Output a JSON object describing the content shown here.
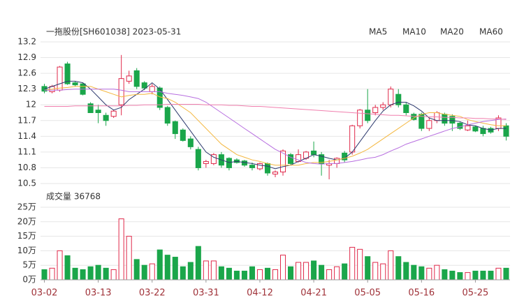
{
  "chart_data": [
    {
      "type": "candlestick",
      "title": "一拖股份[SH601038] 2023-05-31",
      "up_color": "#e0294a",
      "down_color": "#1aa64a",
      "open": [
        12.35,
        12.25,
        12.28,
        12.78,
        12.42,
        12.4,
        12.02,
        11.9,
        11.8,
        11.78,
        12.0,
        12.45,
        12.65,
        12.42,
        12.25,
        12.32,
        11.95,
        11.68,
        11.52,
        11.35,
        11.15,
        10.88,
        10.88,
        11.05,
        10.98,
        10.95,
        10.93,
        10.85,
        10.78,
        10.88,
        10.68,
        10.72,
        11.05,
        10.92,
        10.98,
        11.12,
        11.05,
        10.85,
        10.88,
        11.08,
        11.1,
        11.6,
        11.9,
        11.85,
        11.95,
        12.0,
        12.2,
        12.0,
        11.82,
        11.82,
        11.55,
        11.7,
        11.82,
        11.78,
        11.65,
        11.52,
        11.58,
        11.55,
        11.55,
        11.55,
        11.6
      ],
      "high": [
        12.4,
        12.38,
        12.74,
        12.82,
        12.45,
        12.42,
        12.05,
        12.0,
        11.85,
        11.9,
        12.95,
        12.65,
        12.7,
        12.45,
        12.4,
        12.35,
        11.98,
        11.7,
        11.55,
        11.4,
        11.2,
        10.95,
        11.08,
        11.1,
        11.0,
        10.98,
        10.95,
        10.9,
        10.9,
        10.9,
        10.75,
        11.15,
        11.08,
        11.15,
        11.12,
        11.3,
        11.1,
        10.95,
        11.0,
        11.12,
        11.62,
        11.92,
        12.3,
        12.0,
        12.05,
        12.35,
        12.3,
        12.05,
        11.85,
        11.85,
        11.75,
        11.88,
        11.85,
        11.82,
        11.68,
        11.7,
        11.6,
        11.6,
        11.58,
        11.8,
        11.65
      ],
      "low": [
        12.22,
        12.22,
        12.25,
        12.38,
        12.35,
        12.18,
        11.85,
        11.65,
        11.6,
        11.75,
        11.8,
        12.4,
        12.3,
        12.28,
        12.2,
        11.9,
        11.6,
        11.35,
        11.3,
        11.15,
        10.75,
        10.8,
        10.85,
        10.8,
        10.75,
        10.88,
        10.82,
        10.75,
        10.75,
        10.65,
        10.62,
        10.65,
        10.85,
        10.9,
        10.95,
        11.0,
        10.65,
        10.58,
        10.8,
        10.9,
        11.05,
        11.55,
        11.65,
        11.8,
        11.9,
        11.95,
        11.95,
        11.8,
        11.7,
        11.5,
        11.5,
        11.65,
        11.6,
        11.5,
        11.52,
        11.5,
        11.48,
        11.4,
        11.45,
        11.5,
        11.32
      ],
      "close": [
        12.26,
        12.35,
        12.72,
        12.4,
        12.38,
        12.2,
        11.85,
        11.85,
        11.7,
        11.88,
        12.5,
        12.55,
        12.35,
        12.32,
        12.35,
        11.95,
        11.65,
        11.45,
        11.32,
        11.2,
        10.8,
        10.92,
        11.05,
        10.85,
        10.8,
        10.9,
        10.85,
        10.8,
        10.88,
        10.7,
        10.72,
        11.12,
        10.88,
        11.05,
        11.1,
        11.05,
        10.88,
        10.88,
        10.98,
        10.95,
        11.6,
        11.9,
        11.7,
        11.95,
        12.0,
        12.3,
        12.0,
        11.85,
        11.72,
        11.55,
        11.7,
        11.85,
        11.65,
        11.65,
        11.55,
        11.6,
        11.5,
        11.45,
        11.48,
        11.75,
        11.4
      ],
      "series": [
        {
          "name": "MA5",
          "color": "#2d3a6e",
          "values": [
            12.3,
            12.35,
            12.4,
            12.45,
            12.45,
            12.42,
            12.3,
            12.15,
            12.0,
            11.9,
            11.95,
            12.1,
            12.2,
            12.3,
            12.42,
            12.3,
            12.1,
            11.9,
            11.7,
            11.5,
            11.3,
            11.1,
            11.0,
            10.95,
            10.9,
            10.92,
            10.9,
            10.88,
            10.85,
            10.83,
            10.78,
            10.82,
            10.85,
            10.92,
            10.98,
            11.05,
            11.02,
            10.98,
            10.95,
            10.98,
            11.1,
            11.3,
            11.5,
            11.7,
            11.88,
            12.0,
            12.05,
            12.05,
            11.98,
            11.88,
            11.75,
            11.7,
            11.7,
            11.7,
            11.68,
            11.62,
            11.6,
            11.55,
            11.52,
            11.55,
            11.55
          ]
        },
        {
          "name": "MA10",
          "color": "#f4b73f",
          "values": [
            12.28,
            12.3,
            12.32,
            12.33,
            12.35,
            12.35,
            12.35,
            12.3,
            12.25,
            12.2,
            12.15,
            12.18,
            12.2,
            12.2,
            12.22,
            12.15,
            12.12,
            12.05,
            11.95,
            11.85,
            11.7,
            11.55,
            11.4,
            11.25,
            11.15,
            11.05,
            11.0,
            10.95,
            10.92,
            10.88,
            10.85,
            10.85,
            10.85,
            10.85,
            10.88,
            10.9,
            10.9,
            10.92,
            10.95,
            10.98,
            11.02,
            11.08,
            11.15,
            11.25,
            11.35,
            11.45,
            11.55,
            11.65,
            11.75,
            11.82,
            11.85,
            11.85,
            11.82,
            11.8,
            11.78,
            11.72,
            11.68,
            11.65,
            11.62,
            11.6,
            11.6
          ]
        },
        {
          "name": "MA20",
          "color": "#b86fe0",
          "values": [
            12.28,
            12.28,
            12.28,
            12.29,
            12.3,
            12.3,
            12.3,
            12.3,
            12.3,
            12.3,
            12.28,
            12.25,
            12.25,
            12.25,
            12.25,
            12.25,
            12.22,
            12.2,
            12.18,
            12.15,
            12.12,
            12.05,
            11.95,
            11.85,
            11.75,
            11.65,
            11.55,
            11.45,
            11.35,
            11.25,
            11.15,
            11.08,
            11.0,
            10.95,
            10.9,
            10.88,
            10.87,
            10.88,
            10.88,
            10.9,
            10.92,
            10.95,
            10.98,
            11.0,
            11.05,
            11.12,
            11.18,
            11.25,
            11.3,
            11.35,
            11.4,
            11.45,
            11.5,
            11.55,
            11.58,
            11.62,
            11.65,
            11.68,
            11.7,
            11.72,
            11.73
          ]
        },
        {
          "name": "MA60",
          "color": "#f07fae",
          "values": [
            11.97,
            11.97,
            11.97,
            11.97,
            11.98,
            11.98,
            11.98,
            11.98,
            11.98,
            11.98,
            11.98,
            11.99,
            11.99,
            12.0,
            12.0,
            12.0,
            12.01,
            12.01,
            12.01,
            12.01,
            12.01,
            12.0,
            12.0,
            12.0,
            11.99,
            11.99,
            11.98,
            11.97,
            11.97,
            11.96,
            11.95,
            11.94,
            11.93,
            11.92,
            11.91,
            11.9,
            11.89,
            11.88,
            11.87,
            11.86,
            11.85,
            11.84,
            11.83,
            11.82,
            11.81,
            11.8,
            11.8,
            11.79,
            11.78,
            11.78,
            11.77,
            11.77,
            11.76,
            11.76,
            11.75,
            11.75,
            11.74,
            11.74,
            11.73,
            11.73,
            11.72
          ]
        }
      ],
      "ylim": [
        10.5,
        13.2
      ],
      "yticks": [
        10.5,
        10.8,
        11.1,
        11.4,
        11.7,
        12,
        12.3,
        12.6,
        12.9,
        13.2
      ],
      "grid": true
    },
    {
      "type": "bar",
      "title": "成交量 36768",
      "categories": [
        "03-02",
        null,
        null,
        null,
        null,
        null,
        null,
        "03-13",
        null,
        null,
        null,
        null,
        null,
        null,
        "03-22",
        null,
        null,
        null,
        null,
        null,
        null,
        "03-31",
        null,
        null,
        null,
        null,
        null,
        null,
        "04-12",
        null,
        null,
        null,
        null,
        null,
        null,
        "04-21",
        null,
        null,
        null,
        null,
        null,
        null,
        "05-05",
        null,
        null,
        null,
        null,
        null,
        null,
        "05-16",
        null,
        null,
        null,
        null,
        null,
        null,
        "05-25",
        null,
        null,
        null,
        null
      ],
      "values": [
        3.5,
        4,
        10,
        8.3,
        4,
        3.5,
        4.5,
        5,
        4,
        3.5,
        21,
        15,
        7,
        5,
        5.5,
        10.3,
        8.5,
        7.8,
        4.5,
        6,
        11.5,
        6.5,
        6.5,
        4.5,
        4,
        3,
        3,
        4.5,
        3.5,
        4,
        3.5,
        8.5,
        4.5,
        6,
        6,
        6.5,
        5,
        3.5,
        4.5,
        5.5,
        11.2,
        10.5,
        8,
        6,
        5.5,
        10,
        8,
        6,
        5,
        4.5,
        4,
        5,
        3.5,
        3,
        2.5,
        2.5,
        3,
        3,
        3,
        4,
        4
      ],
      "ylim": [
        0,
        25
      ],
      "yticks": [
        {
          "value": 0,
          "label": "0万"
        },
        {
          "value": 5,
          "label": "5万"
        },
        {
          "value": 10,
          "label": "10万"
        },
        {
          "value": 15,
          "label": "15万"
        },
        {
          "value": 20,
          "label": "20万"
        },
        {
          "value": 25,
          "label": "25万"
        }
      ],
      "grid": true
    }
  ]
}
